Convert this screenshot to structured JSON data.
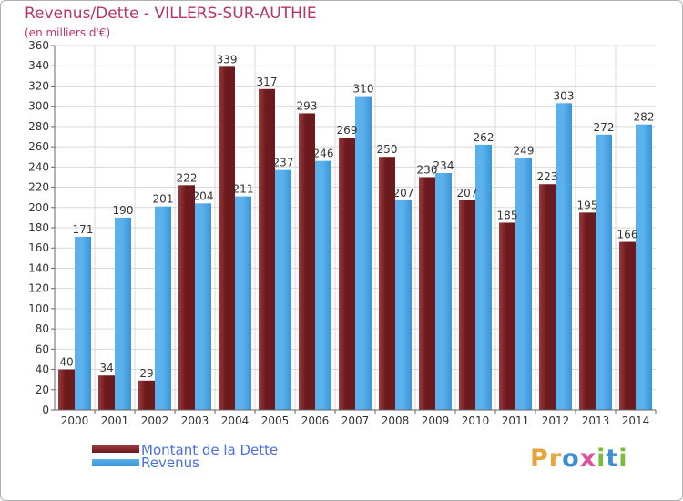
{
  "header": {
    "title": "Revenus/Dette - VILLERS-SUR-AUTHIE",
    "subtitle": "(en milliers d'€)"
  },
  "legend": {
    "debt_label": "Montant de la Dette",
    "revenue_label": "Revenus"
  },
  "logo": {
    "text": "Proxiti",
    "letters": [
      "P",
      "r",
      "o",
      "x",
      "i",
      "t",
      "i"
    ],
    "colors": [
      "#e8a33a",
      "#e8a33a",
      "#3a8fd6",
      "#e04f9a",
      "#7dbb3c",
      "#3a8fd6",
      "#7dbb3c"
    ]
  },
  "colors": {
    "debt": "#6b1a1d",
    "debt_light": "#9a3a3e",
    "revenue": "#3b95d8",
    "revenue_light": "#5cb1ec",
    "grid": "#d9d9d9",
    "plot_bg": "#ffffff"
  },
  "chart_data": {
    "type": "bar",
    "title": "Revenus/Dette - VILLERS-SUR-AUTHIE",
    "ylabel": "(en milliers d'€)",
    "xlabel": "",
    "categories": [
      "2000",
      "2001",
      "2002",
      "2003",
      "2004",
      "2005",
      "2006",
      "2007",
      "2008",
      "2009",
      "2010",
      "2011",
      "2012",
      "2013",
      "2014"
    ],
    "series": [
      {
        "name": "Montant de la Dette",
        "values": [
          40,
          34,
          29,
          222,
          339,
          317,
          293,
          269,
          250,
          230,
          207,
          185,
          223,
          195,
          166
        ]
      },
      {
        "name": "Revenus",
        "values": [
          171,
          190,
          201,
          204,
          211,
          237,
          246,
          310,
          207,
          234,
          262,
          249,
          303,
          272,
          282
        ]
      }
    ],
    "ylim": [
      0,
      360
    ],
    "yticks": [
      0,
      20,
      40,
      60,
      80,
      100,
      120,
      140,
      160,
      180,
      200,
      220,
      240,
      260,
      280,
      300,
      320,
      340,
      360
    ],
    "grid": true,
    "legend_position": "bottom-left"
  }
}
